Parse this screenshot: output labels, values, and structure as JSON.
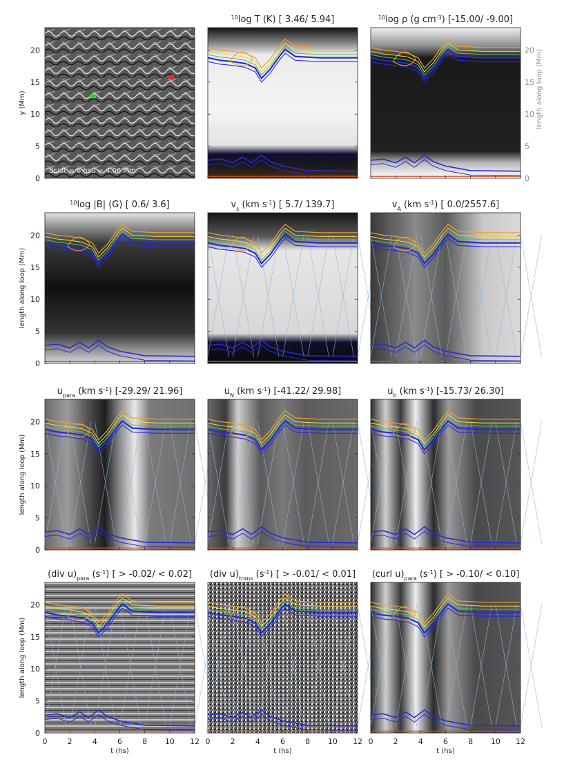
{
  "figure": {
    "xlabel": "t (hs)",
    "ylabel_map": "y (Mm)",
    "ylabel_loop": "length along loop (Mm)",
    "context_annotation": "ds/dt = 6 hsu = 4.06 Mm"
  },
  "chart_data": [
    {
      "type": "heatmap",
      "id": "map",
      "title": "",
      "ylabel": "y (Mm)",
      "ylim": [
        0,
        23.5
      ],
      "yticks": [
        0,
        5,
        10,
        15,
        20
      ],
      "markers": [
        {
          "label": "green footpoint",
          "x_frac": 0.32,
          "y": 12.8,
          "color": "#2fd12f"
        },
        {
          "label": "red footpoint",
          "x_frac": 0.84,
          "y": 15.8,
          "color": "#e03030"
        }
      ]
    },
    {
      "type": "heatmap",
      "id": "logT",
      "title_parts": [
        {
          "t": "10",
          "s": "sup"
        },
        {
          "t": "log T (K) [  3.46/  5.94]"
        }
      ],
      "xlim": [
        0,
        12
      ],
      "ylim": [
        0,
        23.5
      ],
      "range": [
        3.46,
        5.94
      ]
    },
    {
      "type": "heatmap",
      "id": "logrho",
      "title_parts": [
        {
          "t": "10",
          "s": "sup"
        },
        {
          "t": "log ρ (g cm"
        },
        {
          "t": "-3",
          "s": "sup"
        },
        {
          "t": ") [-15.00/ -9.00]"
        }
      ],
      "xlim": [
        0,
        12
      ],
      "ylim": [
        0,
        23.5
      ],
      "range": [
        -15.0,
        -9.0
      ],
      "right_ylabel": "length along loop (Mm)"
    },
    {
      "type": "heatmap",
      "id": "logB",
      "title_parts": [
        {
          "t": "10",
          "s": "sup"
        },
        {
          "t": "log |B| (G) [   0.6/   3.6]"
        }
      ],
      "xlim": [
        0,
        12
      ],
      "ylim": [
        0,
        23.5
      ],
      "range": [
        0.6,
        3.6
      ]
    },
    {
      "type": "heatmap",
      "id": "vs",
      "title_parts": [
        {
          "t": "v"
        },
        {
          "t": "s",
          "s": "sub"
        },
        {
          "t": " (km s"
        },
        {
          "t": "-1",
          "s": "sup"
        },
        {
          "t": ") [   5.7/ 139.7]"
        }
      ],
      "xlim": [
        0,
        12
      ],
      "ylim": [
        0,
        23.5
      ],
      "range": [
        5.7,
        139.7
      ]
    },
    {
      "type": "heatmap",
      "id": "vA",
      "title_parts": [
        {
          "t": "v"
        },
        {
          "t": "A",
          "s": "sub"
        },
        {
          "t": " (km s"
        },
        {
          "t": "-1",
          "s": "sup"
        },
        {
          "t": ") [   0.0/2557.6]"
        }
      ],
      "xlim": [
        0,
        12
      ],
      "ylim": [
        0,
        23.5
      ],
      "range": [
        0.0,
        2557.6
      ]
    },
    {
      "type": "heatmap",
      "id": "upara",
      "title_parts": [
        {
          "t": "u"
        },
        {
          "t": "para",
          "s": "sub"
        },
        {
          "t": " (km s"
        },
        {
          "t": "-1",
          "s": "sup"
        },
        {
          "t": ") [-29.29/ 21.96]"
        }
      ],
      "xlim": [
        0,
        12
      ],
      "ylim": [
        0,
        23.5
      ],
      "range": [
        -29.29,
        21.96
      ]
    },
    {
      "type": "heatmap",
      "id": "uN",
      "title_parts": [
        {
          "t": "u"
        },
        {
          "t": "N",
          "s": "sub"
        },
        {
          "t": " (km s"
        },
        {
          "t": "-1",
          "s": "sup"
        },
        {
          "t": ") [-41.22/ 29.98]"
        }
      ],
      "xlim": [
        0,
        12
      ],
      "ylim": [
        0,
        23.5
      ],
      "range": [
        -41.22,
        29.98
      ]
    },
    {
      "type": "heatmap",
      "id": "ub",
      "title_parts": [
        {
          "t": "u"
        },
        {
          "t": "b",
          "s": "sub"
        },
        {
          "t": " (km s"
        },
        {
          "t": "-1",
          "s": "sup"
        },
        {
          "t": ") [-15.73/ 26.30]"
        }
      ],
      "xlim": [
        0,
        12
      ],
      "ylim": [
        0,
        23.5
      ],
      "range": [
        -15.73,
        26.3
      ]
    },
    {
      "type": "heatmap",
      "id": "divpara",
      "title_parts": [
        {
          "t": "(div u)"
        },
        {
          "t": "para",
          "s": "sub"
        },
        {
          "t": " (s"
        },
        {
          "t": "-1",
          "s": "sup"
        },
        {
          "t": ") [ > -0.02/ <  0.02]"
        }
      ],
      "xlim": [
        0,
        12
      ],
      "ylim": [
        0,
        23.5
      ],
      "range": [
        -0.02,
        0.02
      ]
    },
    {
      "type": "heatmap",
      "id": "divtrans",
      "title_parts": [
        {
          "t": "(div u)"
        },
        {
          "t": "trans",
          "s": "sub"
        },
        {
          "t": " (s"
        },
        {
          "t": "-1",
          "s": "sup"
        },
        {
          "t": ") [ > -0.01/ <  0.01]"
        }
      ],
      "xlim": [
        0,
        12
      ],
      "ylim": [
        0,
        23.5
      ],
      "range": [
        -0.01,
        0.01
      ]
    },
    {
      "type": "heatmap",
      "id": "curlpara",
      "title_parts": [
        {
          "t": "(curl u)"
        },
        {
          "t": "para",
          "s": "sub"
        },
        {
          "t": " (s"
        },
        {
          "t": "-1",
          "s": "sup"
        },
        {
          "t": ") [ > -0.10/ <  0.10]"
        }
      ],
      "xlim": [
        0,
        12
      ],
      "ylim": [
        0,
        23.5
      ],
      "range": [
        -0.1,
        0.1
      ]
    }
  ],
  "axes": {
    "xticks": [
      0,
      2,
      4,
      6,
      8,
      10,
      12
    ],
    "yticks": [
      0,
      5,
      10,
      15,
      20
    ]
  },
  "colors": {
    "contour_blue": "#2a2ad6",
    "contour_orange": "#f0a030",
    "contour_yellow": "#e8d84a",
    "contour_green": "#58c058",
    "characteristics": "#8fb8d8",
    "base_red": "#d05020"
  }
}
